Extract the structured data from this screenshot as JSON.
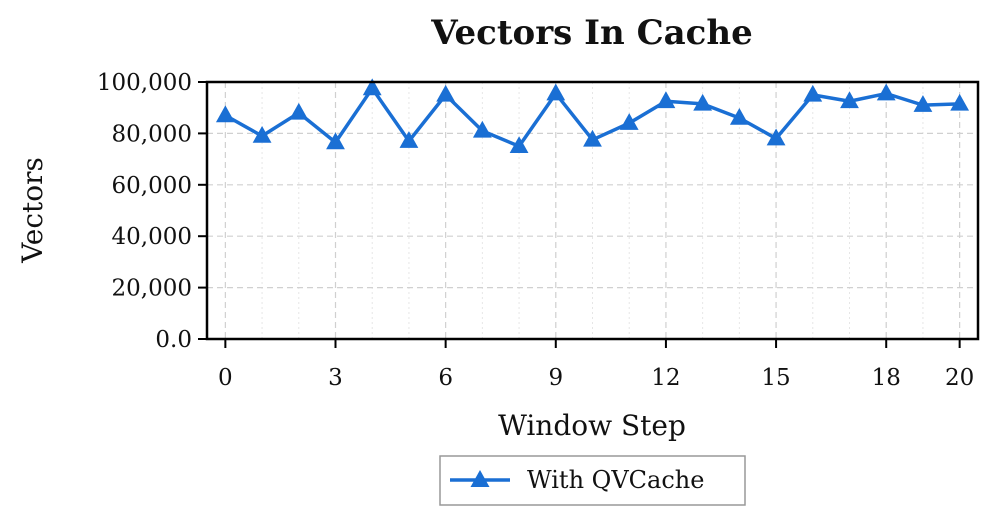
{
  "chart_data": {
    "type": "line",
    "title": "Vectors In Cache",
    "xlabel": "Window Step",
    "ylabel": "Vectors",
    "x": [
      0,
      1,
      2,
      3,
      4,
      5,
      6,
      7,
      8,
      9,
      10,
      11,
      12,
      13,
      14,
      15,
      16,
      17,
      18,
      19,
      20
    ],
    "xlim": [
      -0.5,
      20.5
    ],
    "ylim": [
      0,
      100000
    ],
    "x_ticks": [
      0,
      3,
      6,
      9,
      12,
      15,
      18,
      20
    ],
    "x_tick_labels": [
      "0",
      "3",
      "6",
      "9",
      "12",
      "15",
      "18",
      "20"
    ],
    "y_ticks": [
      0,
      20000,
      40000,
      60000,
      80000,
      100000
    ],
    "y_tick_labels": [
      "0.0",
      "20,000",
      "40,000",
      "60,000",
      "80,000",
      "100,000"
    ],
    "grid": true,
    "legend_position": "bottom-center",
    "series": [
      {
        "name": "With QVCache",
        "color": "#1a6fd4",
        "marker": "triangle-up",
        "values": [
          87000,
          79000,
          88000,
          76500,
          97500,
          77000,
          95000,
          81000,
          75000,
          95500,
          77500,
          84000,
          92500,
          91500,
          86000,
          78000,
          95000,
          92500,
          95500,
          91000,
          91500
        ]
      }
    ]
  }
}
